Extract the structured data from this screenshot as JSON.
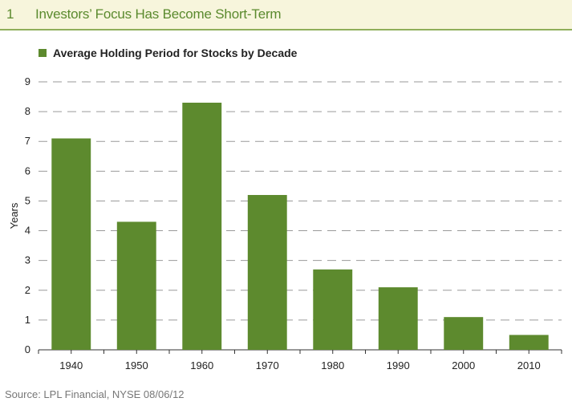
{
  "header": {
    "number": "1",
    "title": "Investors’ Focus Has Become Short-Term"
  },
  "source": "Source: LPL Financial, NYSE   08/06/12",
  "colors": {
    "bar": "#5d8a2e",
    "title_text": "#5b8a2e",
    "title_background": "#f7f5dc",
    "grid": "#9a9a9a"
  },
  "chart_data": {
    "type": "bar",
    "categories": [
      "1940",
      "1950",
      "1960",
      "1970",
      "1980",
      "1990",
      "2000",
      "2010"
    ],
    "series": [
      {
        "name": "Average Holding Period for Stocks by Decade",
        "values": [
          7.1,
          4.3,
          8.3,
          5.2,
          2.7,
          2.1,
          1.1,
          0.5
        ]
      }
    ],
    "ylabel": "Years",
    "xlabel": "",
    "ylim": [
      0,
      9
    ],
    "yticks": [
      0,
      1,
      2,
      3,
      4,
      5,
      6,
      7,
      8,
      9
    ],
    "grid": "horizontal dashed",
    "legend_position": "top-left"
  }
}
